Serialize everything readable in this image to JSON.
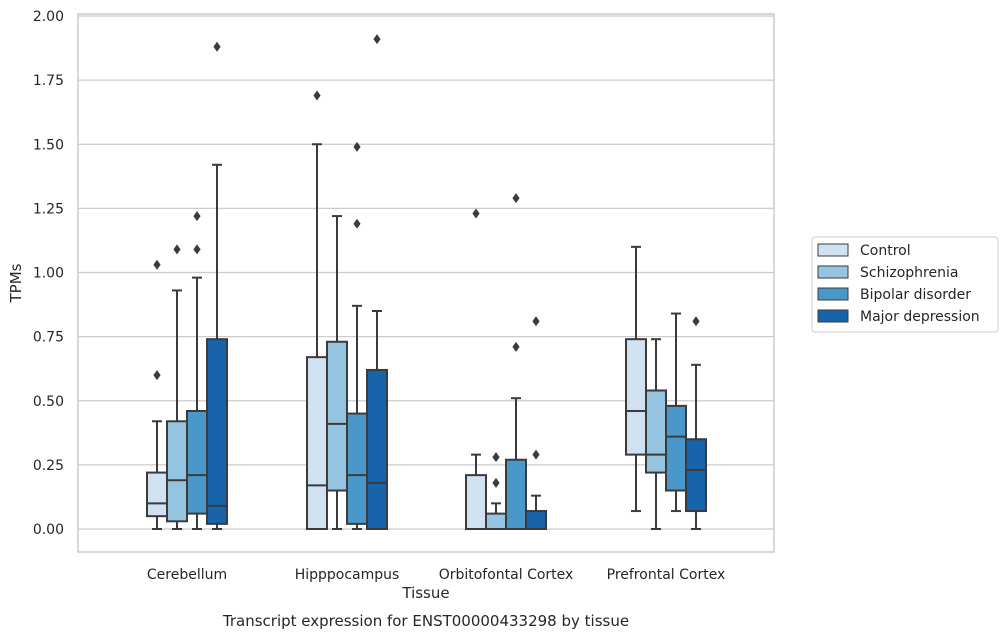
{
  "chart_data": {
    "type": "box",
    "caption": "Transcript expression for ENST00000433298 by tissue",
    "xlabel": "Tissue",
    "ylabel": "TPMs",
    "ylim": [
      -0.09,
      2.01
    ],
    "yticks": [
      "0.00",
      "0.25",
      "0.50",
      "0.75",
      "1.00",
      "1.25",
      "1.50",
      "1.75",
      "2.00"
    ],
    "ytick_values": [
      0,
      0.25,
      0.5,
      0.75,
      1.0,
      1.25,
      1.5,
      1.75,
      2.0
    ],
    "grid": "horizontal",
    "legend_position": "right",
    "categories": [
      "Cerebellum",
      "Hipppocampus",
      "Orbitofontal Cortex",
      "Prefrontal Cortex"
    ],
    "series": [
      {
        "name": "Control",
        "color": "#d0e1f2",
        "boxes": [
          {
            "whisker_low": 0.0,
            "q1": 0.05,
            "median": 0.1,
            "q3": 0.22,
            "whisker_high": 0.42,
            "outliers": [
              0.6,
              1.03
            ]
          },
          {
            "whisker_low": 0.0,
            "q1": 0.0,
            "median": 0.17,
            "q3": 0.67,
            "whisker_high": 1.5,
            "outliers": [
              1.69
            ]
          },
          {
            "whisker_low": 0.0,
            "q1": 0.0,
            "median": 0.0,
            "q3": 0.21,
            "whisker_high": 0.29,
            "outliers": [
              1.23
            ]
          },
          {
            "whisker_low": 0.07,
            "q1": 0.29,
            "median": 0.46,
            "q3": 0.74,
            "whisker_high": 1.1,
            "outliers": []
          }
        ]
      },
      {
        "name": "Schizophrenia",
        "color": "#94c4df",
        "boxes": [
          {
            "whisker_low": 0.0,
            "q1": 0.03,
            "median": 0.19,
            "q3": 0.42,
            "whisker_high": 0.93,
            "outliers": [
              1.09
            ]
          },
          {
            "whisker_low": 0.0,
            "q1": 0.15,
            "median": 0.41,
            "q3": 0.73,
            "whisker_high": 1.22,
            "outliers": []
          },
          {
            "whisker_low": 0.0,
            "q1": 0.0,
            "median": 0.0,
            "q3": 0.06,
            "whisker_high": 0.1,
            "outliers": [
              0.18,
              0.28
            ]
          },
          {
            "whisker_low": 0.0,
            "q1": 0.22,
            "median": 0.29,
            "q3": 0.54,
            "whisker_high": 0.74,
            "outliers": []
          }
        ]
      },
      {
        "name": "Bipolar disorder",
        "color": "#4a98c9",
        "boxes": [
          {
            "whisker_low": 0.0,
            "q1": 0.06,
            "median": 0.21,
            "q3": 0.46,
            "whisker_high": 0.98,
            "outliers": [
              1.09,
              1.22
            ]
          },
          {
            "whisker_low": 0.0,
            "q1": 0.02,
            "median": 0.21,
            "q3": 0.45,
            "whisker_high": 0.87,
            "outliers": [
              1.19,
              1.49
            ]
          },
          {
            "whisker_low": 0.0,
            "q1": 0.0,
            "median": 0.0,
            "q3": 0.27,
            "whisker_high": 0.51,
            "outliers": [
              0.71,
              1.29
            ]
          },
          {
            "whisker_low": 0.07,
            "q1": 0.15,
            "median": 0.36,
            "q3": 0.48,
            "whisker_high": 0.84,
            "outliers": []
          }
        ]
      },
      {
        "name": "Major depression",
        "color": "#1764ab",
        "boxes": [
          {
            "whisker_low": 0.0,
            "q1": 0.02,
            "median": 0.09,
            "q3": 0.74,
            "whisker_high": 1.42,
            "outliers": [
              1.88
            ]
          },
          {
            "whisker_low": 0.0,
            "q1": 0.0,
            "median": 0.18,
            "q3": 0.62,
            "whisker_high": 0.85,
            "outliers": [
              1.91
            ]
          },
          {
            "whisker_low": 0.0,
            "q1": 0.0,
            "median": 0.0,
            "q3": 0.07,
            "whisker_high": 0.13,
            "outliers": [
              0.29,
              0.81
            ]
          },
          {
            "whisker_low": 0.0,
            "q1": 0.07,
            "median": 0.23,
            "q3": 0.35,
            "whisker_high": 0.64,
            "outliers": [
              0.81
            ]
          }
        ]
      }
    ]
  }
}
